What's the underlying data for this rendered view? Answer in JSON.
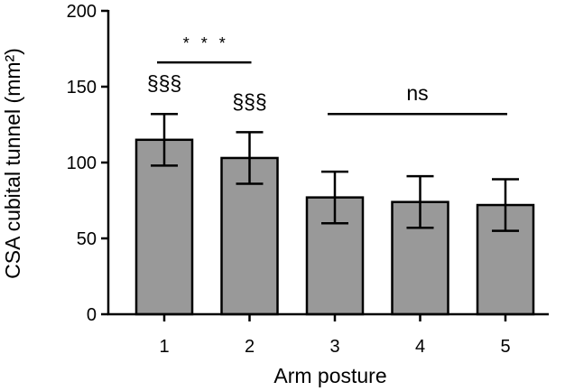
{
  "chart_data": {
    "type": "bar",
    "title": "",
    "xlabel": "Arm posture",
    "ylabel": "CSA cubital tunnel (mm²)",
    "categories": [
      "1",
      "2",
      "3",
      "4",
      "5"
    ],
    "values": [
      115,
      103,
      77,
      74,
      72
    ],
    "error": [
      17,
      17,
      17,
      17,
      17
    ],
    "ylim": [
      0,
      200
    ],
    "yticks": [
      "0",
      "50",
      "100",
      "150",
      "200"
    ],
    "grid": false,
    "bar_color": "#999999",
    "annotations": {
      "section_marks": [
        {
          "category": "1",
          "text": "§§§"
        },
        {
          "category": "2",
          "text": "§§§"
        }
      ],
      "brackets": [
        {
          "from": "1",
          "to": "2",
          "level": 166,
          "text": "* * *"
        },
        {
          "from": "3",
          "to": "5",
          "level": 132,
          "text": "ns"
        }
      ]
    }
  }
}
